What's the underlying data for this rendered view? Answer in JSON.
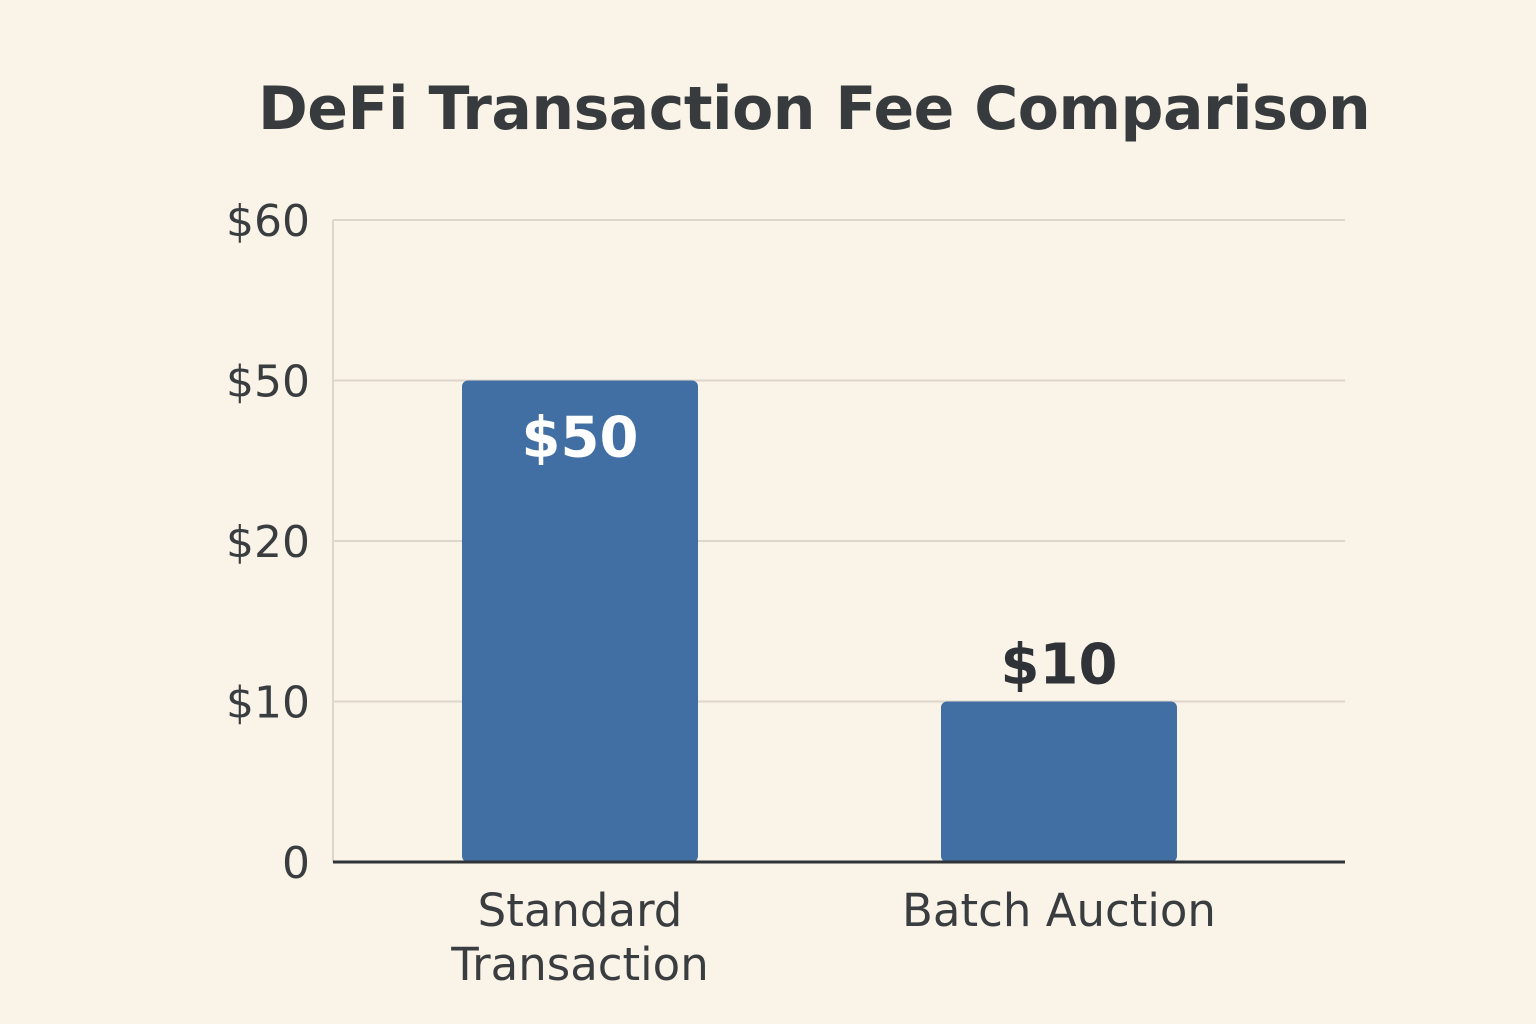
{
  "chart_data": {
    "type": "bar",
    "title": "DeFi Transaction Fee Comparison",
    "xlabel": "",
    "ylabel": "",
    "categories": [
      "Standard Transaction",
      "Batch Auction"
    ],
    "category_lines": [
      [
        "Standard",
        "Transaction"
      ],
      [
        "Batch Auction"
      ]
    ],
    "values": [
      50,
      10
    ],
    "data_labels": [
      "$50",
      "$10"
    ],
    "y_ticks": [
      {
        "value": 0,
        "label": "0"
      },
      {
        "value": 10,
        "label": "$10"
      },
      {
        "value": 20,
        "label": "$20"
      },
      {
        "value": 50,
        "label": "$50"
      },
      {
        "value": 60,
        "label": "$60"
      }
    ],
    "ylim": [
      0,
      60
    ],
    "grid": true,
    "legend": "none",
    "colors": {
      "bar": "#426fa3",
      "background": "#faf3e8",
      "text": "#3a3d40",
      "grid": "#ddd6cc",
      "axis": "#2f3236"
    }
  }
}
